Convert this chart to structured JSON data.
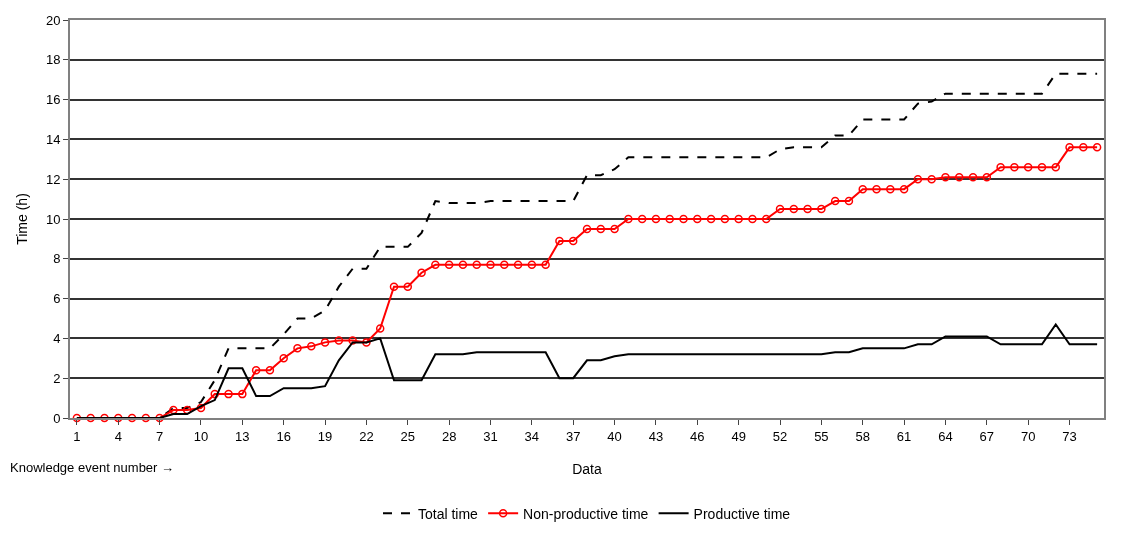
{
  "chart_data": {
    "type": "line",
    "xlabel": "Data",
    "ylabel": "Time (h)",
    "categories": [
      "1",
      null,
      null,
      "4",
      null,
      null,
      "7",
      null,
      null,
      "10",
      null,
      null,
      "13",
      null,
      null,
      "16",
      null,
      null,
      "19",
      null,
      null,
      "22",
      null,
      null,
      "25",
      null,
      null,
      "28",
      null,
      null,
      "31",
      null,
      null,
      "34",
      null,
      null,
      "37",
      null,
      null,
      "40",
      null,
      null,
      "43",
      null,
      null,
      "46",
      null,
      null,
      "49",
      null,
      null,
      "52",
      null,
      null,
      "55",
      null,
      null,
      "58",
      null,
      null,
      "61",
      null,
      null,
      "64",
      null,
      null,
      "67",
      null,
      null,
      "70",
      null,
      null,
      "73",
      null,
      null
    ],
    "series": [
      {
        "name": "Total time",
        "color": "#000000",
        "line_style": "dashed",
        "marker": "none",
        "values": [
          0,
          0,
          0,
          0,
          0,
          0,
          0,
          0.5,
          0.5,
          0.8,
          1.9,
          3.5,
          3.5,
          3.5,
          3.5,
          4.2,
          5.0,
          5.0,
          5.4,
          6.6,
          7.5,
          7.5,
          8.6,
          8.6,
          8.6,
          9.3,
          10.9,
          10.8,
          10.8,
          10.8,
          10.9,
          10.9,
          10.9,
          10.9,
          10.9,
          10.9,
          10.9,
          12.2,
          12.2,
          12.5,
          13.1,
          13.1,
          13.1,
          13.1,
          13.1,
          13.1,
          13.1,
          13.1,
          13.1,
          13.1,
          13.1,
          13.5,
          13.6,
          13.6,
          13.6,
          14.2,
          14.2,
          15.0,
          15.0,
          15.0,
          15.0,
          15.8,
          15.9,
          16.3,
          16.3,
          16.3,
          16.3,
          16.3,
          16.3,
          16.3,
          16.3,
          17.3,
          17.3,
          17.3,
          17.3
        ]
      },
      {
        "name": "Non-productive time",
        "color": "#ff0000",
        "line_style": "solid",
        "marker": "circle",
        "values": [
          0,
          0,
          0,
          0,
          0,
          0,
          0,
          0.4,
          0.4,
          0.5,
          1.2,
          1.2,
          1.2,
          2.4,
          2.4,
          3.0,
          3.5,
          3.6,
          3.8,
          3.9,
          3.9,
          3.8,
          4.5,
          6.6,
          6.6,
          7.3,
          7.7,
          7.7,
          7.7,
          7.7,
          7.7,
          7.7,
          7.7,
          7.7,
          7.7,
          8.9,
          8.9,
          9.5,
          9.5,
          9.5,
          10.0,
          10.0,
          10.0,
          10.0,
          10.0,
          10.0,
          10.0,
          10.0,
          10.0,
          10.0,
          10.0,
          10.5,
          10.5,
          10.5,
          10.5,
          10.9,
          10.9,
          11.5,
          11.5,
          11.5,
          11.5,
          12.0,
          12.0,
          12.1,
          12.1,
          12.1,
          12.1,
          12.6,
          12.6,
          12.6,
          12.6,
          12.6,
          13.6,
          13.6,
          13.6
        ]
      },
      {
        "name": "Productive time",
        "color": "#000000",
        "line_style": "solid",
        "marker": "none",
        "values": [
          0,
          0,
          0,
          0,
          0,
          0,
          0,
          0.2,
          0.2,
          0.6,
          0.9,
          2.5,
          2.5,
          1.1,
          1.1,
          1.5,
          1.5,
          1.5,
          1.6,
          2.9,
          3.8,
          3.8,
          4.0,
          1.9,
          1.9,
          1.9,
          3.2,
          3.2,
          3.2,
          3.3,
          3.3,
          3.3,
          3.3,
          3.3,
          3.3,
          2.0,
          2.0,
          2.9,
          2.9,
          3.1,
          3.2,
          3.2,
          3.2,
          3.2,
          3.2,
          3.2,
          3.2,
          3.2,
          3.2,
          3.2,
          3.2,
          3.2,
          3.2,
          3.2,
          3.2,
          3.3,
          3.3,
          3.5,
          3.5,
          3.5,
          3.5,
          3.7,
          3.7,
          4.1,
          4.1,
          4.1,
          4.1,
          3.7,
          3.7,
          3.7,
          3.7,
          4.7,
          3.7,
          3.7,
          3.7
        ]
      }
    ],
    "ylim": [
      0,
      20
    ],
    "yticks": [
      0,
      2,
      4,
      6,
      8,
      10,
      12,
      14,
      16,
      18,
      20
    ],
    "grid": "y",
    "legend": "bottom",
    "annotations": [
      "Knowledge event number →"
    ]
  }
}
